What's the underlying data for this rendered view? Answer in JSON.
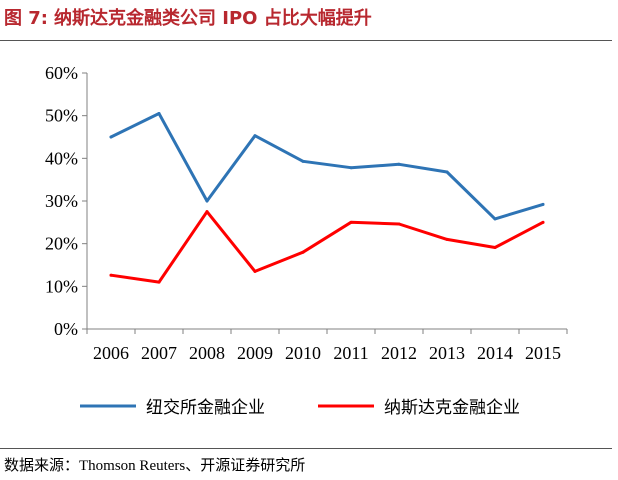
{
  "title": {
    "label": "图 7:",
    "text": "纳斯达克金融类公司 IPO 占比大幅提升"
  },
  "source": {
    "label": "数据来源：",
    "text": "Thomson Reuters、开源证券研究所"
  },
  "chart_data": {
    "type": "line",
    "title": "纳斯达克金融类公司 IPO 占比大幅提升",
    "xlabel": "",
    "ylabel": "",
    "categories": [
      "2006",
      "2007",
      "2008",
      "2009",
      "2010",
      "2011",
      "2012",
      "2013",
      "2014",
      "2015"
    ],
    "ylim": [
      0,
      60
    ],
    "yticks": [
      "0%",
      "10%",
      "20%",
      "30%",
      "40%",
      "50%",
      "60%"
    ],
    "grid": false,
    "legend_position": "bottom",
    "series": [
      {
        "name": "纽交所金融企业",
        "color": "#2e74b5",
        "values": [
          45,
          50.5,
          30,
          45.3,
          39.3,
          37.8,
          38.6,
          36.8,
          25.8,
          29.2
        ]
      },
      {
        "name": "纳斯达克金融企业",
        "color": "#ff0000",
        "values": [
          12.6,
          11,
          27.5,
          13.5,
          18,
          25,
          24.6,
          21,
          19.1,
          25
        ]
      }
    ]
  }
}
